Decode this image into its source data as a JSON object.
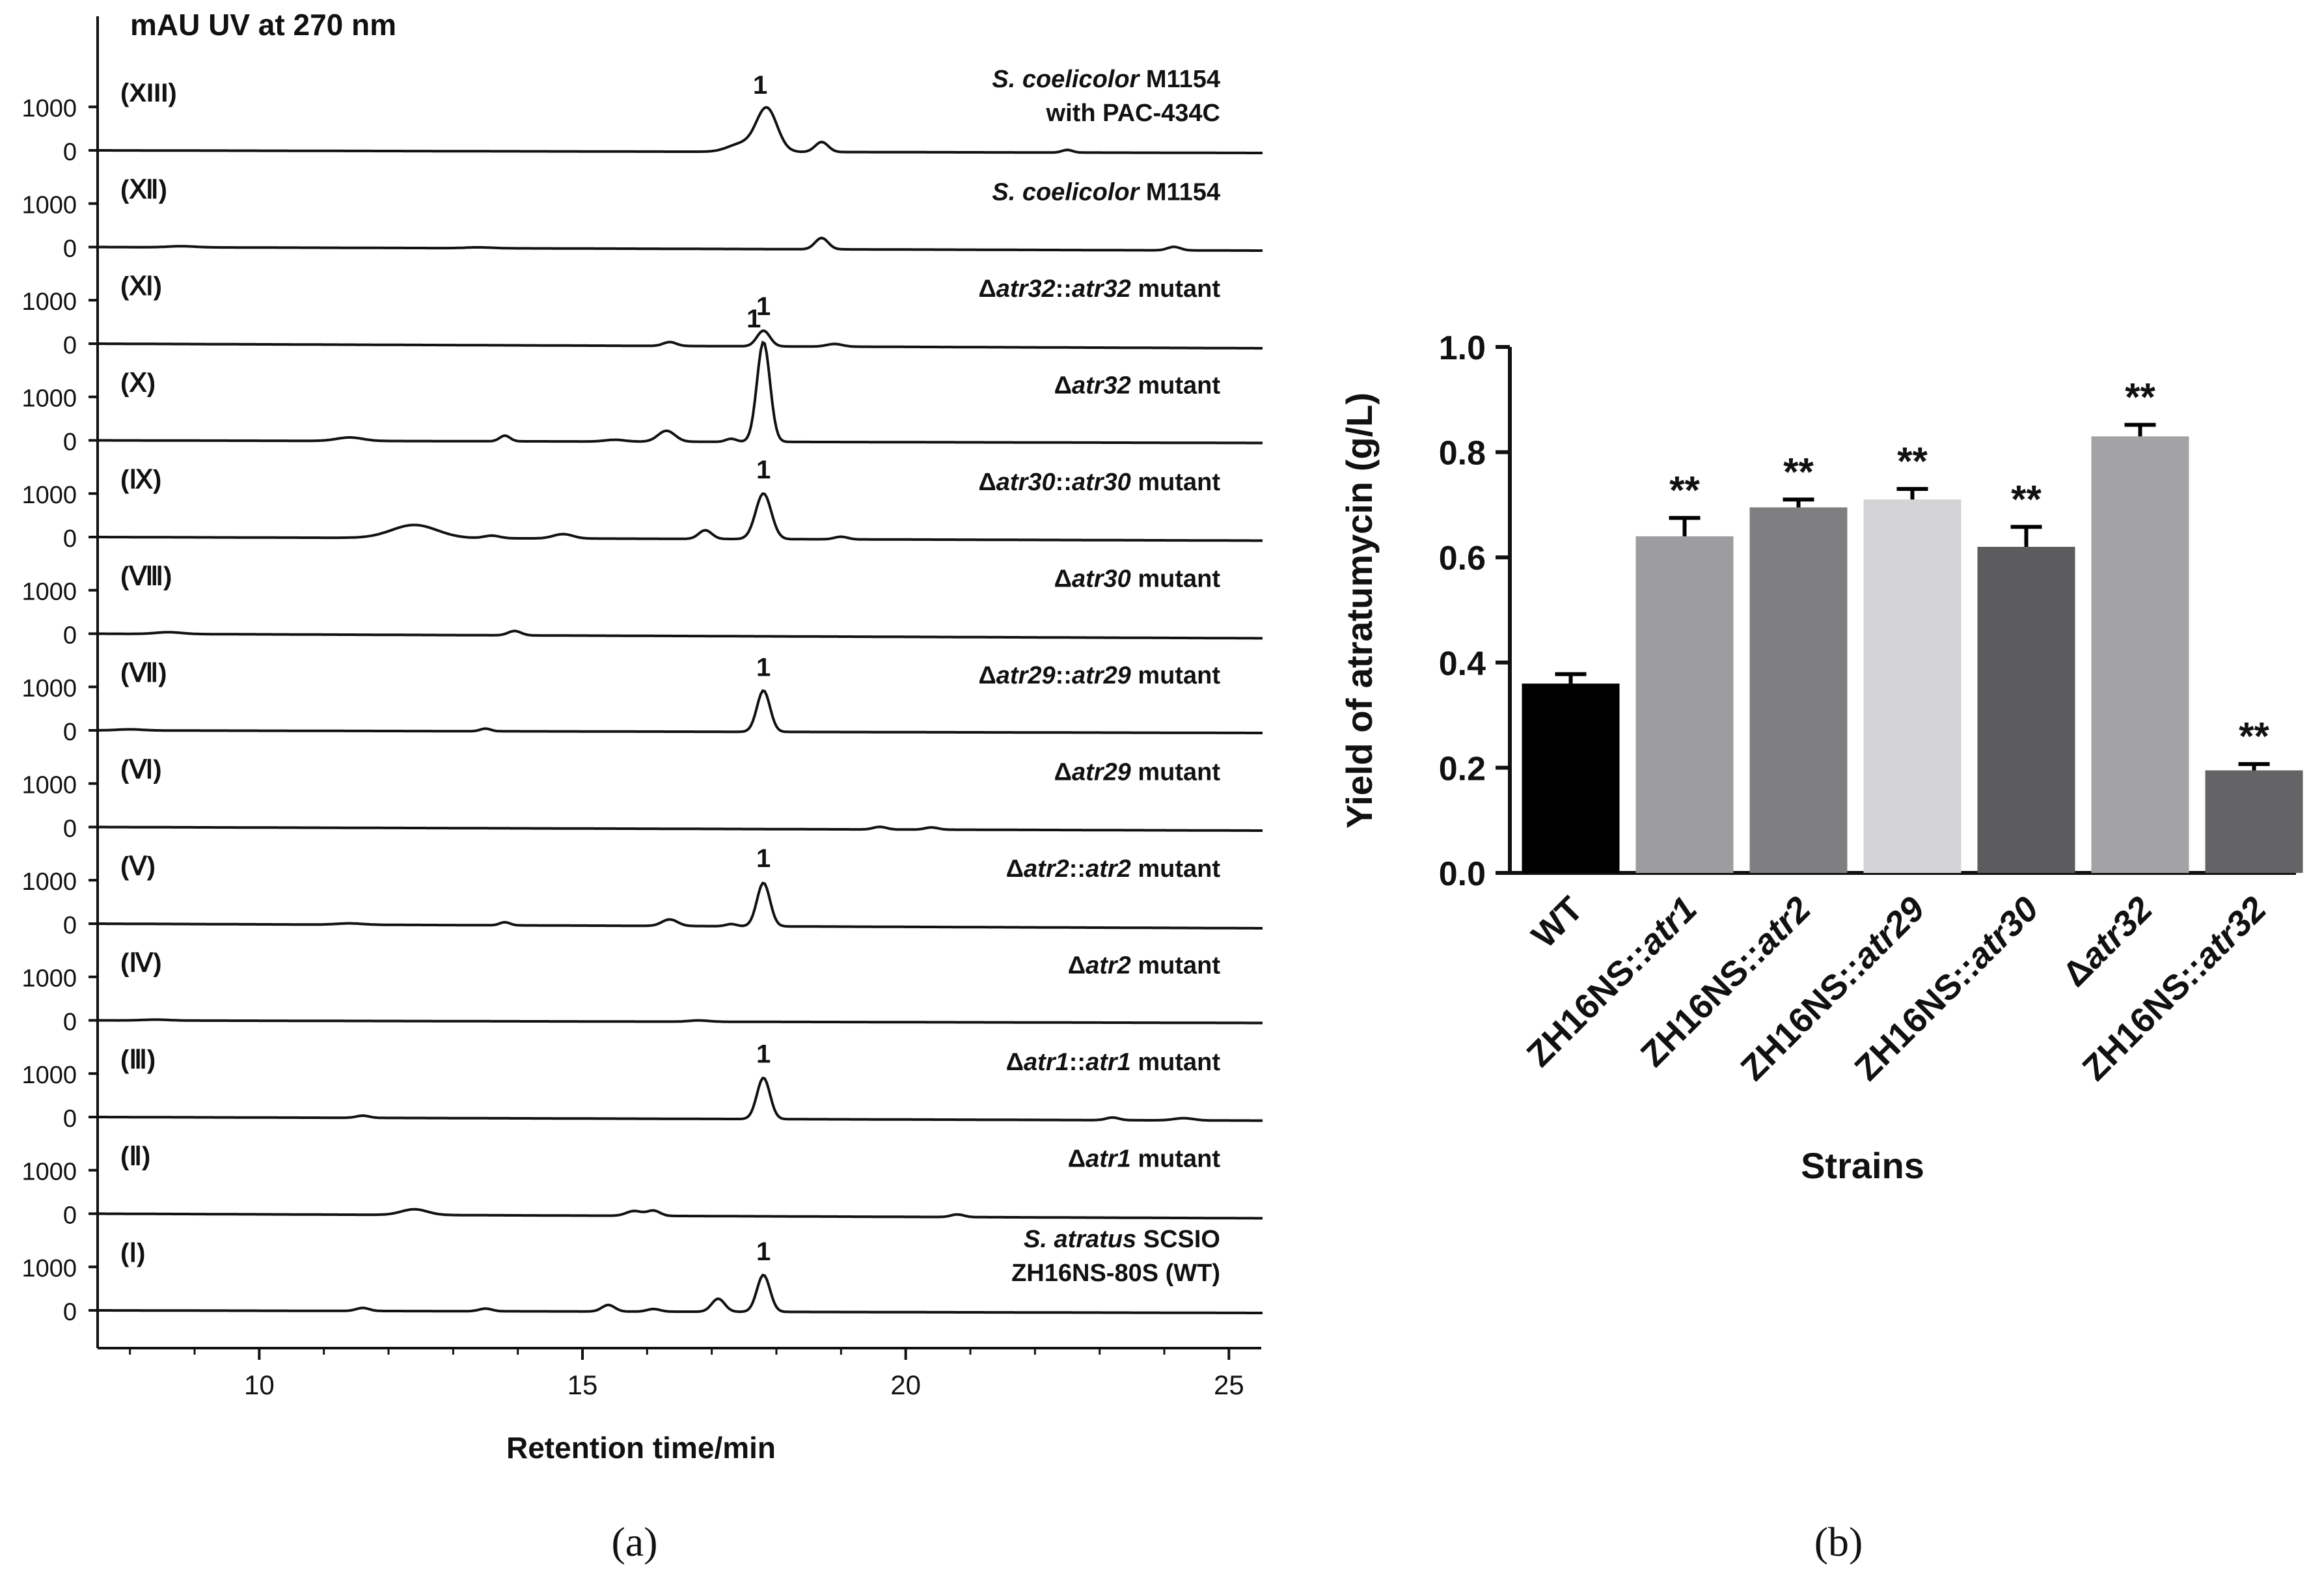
{
  "chart_data": [
    {
      "type": "line",
      "panel_label": "(a)",
      "title": "mAU UV at 270 nm",
      "xlabel": "Retention time/min",
      "ylabel": "mAU UV at 270 nm",
      "xlim": [
        7.5,
        25.5
      ],
      "xticks": [
        "10",
        "15",
        "20",
        "25"
      ],
      "ytick_labels": [
        "1000",
        "0"
      ],
      "grid": false,
      "traces": [
        {
          "roman": "(XIII)",
          "sample": [
            {
              "t": "S. coelicolor",
              "i": true
            },
            {
              "t": " M1154",
              "i": false
            }
          ],
          "sample2": "with PAC-434C",
          "peak_label": "1",
          "peak_label_x": 17.75,
          "peaks": [
            [
              17.85,
              1000,
              0.16
            ],
            [
              17.45,
              180,
              0.2
            ],
            [
              18.7,
              230,
              0.1
            ],
            [
              22.5,
              60,
              0.08
            ]
          ]
        },
        {
          "roman": "(Ⅻ)",
          "sample": [
            {
              "t": "S. coelicolor",
              "i": true
            },
            {
              "t": " M1154",
              "i": false
            }
          ],
          "sample2": "",
          "peak_label": "",
          "peak_label_x": 0,
          "peaks": [
            [
              18.7,
              260,
              0.1
            ],
            [
              24.15,
              80,
              0.1
            ],
            [
              8.8,
              25,
              0.2
            ],
            [
              13.4,
              20,
              0.2
            ]
          ]
        },
        {
          "roman": "(Ⅺ)",
          "sample": [
            {
              "t": "Δ",
              "i": false
            },
            {
              "t": "atr32",
              "i": true
            },
            {
              "t": "::",
              "i": false
            },
            {
              "t": "atr32",
              "i": true
            },
            {
              "t": " mutant",
              "i": false
            }
          ],
          "sample2": "",
          "peak_label": "1",
          "peak_label_x": 17.8,
          "peaks": [
            [
              17.8,
              360,
              0.1
            ],
            [
              16.35,
              90,
              0.1
            ],
            [
              18.9,
              60,
              0.12
            ]
          ]
        },
        {
          "roman": "(Ⅹ)",
          "sample": [
            {
              "t": "Δ",
              "i": false
            },
            {
              "t": "atr32",
              "i": true
            },
            {
              "t": " mutant",
              "i": false
            }
          ],
          "sample2": "",
          "peak_label": "1",
          "peak_label_x": 17.65,
          "peaks": [
            [
              17.8,
              2300,
              0.1
            ],
            [
              16.3,
              250,
              0.13
            ],
            [
              13.8,
              130,
              0.08
            ],
            [
              11.4,
              80,
              0.2
            ],
            [
              17.3,
              70,
              0.08
            ],
            [
              15.5,
              40,
              0.15
            ]
          ]
        },
        {
          "roman": "(Ⅸ)",
          "sample": [
            {
              "t": "Δ",
              "i": false
            },
            {
              "t": "atr30",
              "i": true
            },
            {
              "t": "::",
              "i": false
            },
            {
              "t": "atr30",
              "i": true
            },
            {
              "t": " mutant",
              "i": false
            }
          ],
          "sample2": "",
          "peak_label": "1",
          "peak_label_x": 17.8,
          "peaks": [
            [
              17.8,
              1050,
              0.12
            ],
            [
              12.4,
              300,
              0.35
            ],
            [
              16.9,
              200,
              0.1
            ],
            [
              14.7,
              100,
              0.15
            ],
            [
              13.6,
              60,
              0.12
            ],
            [
              19.0,
              60,
              0.1
            ]
          ]
        },
        {
          "roman": "(Ⅷ)",
          "sample": [
            {
              "t": "Δ",
              "i": false
            },
            {
              "t": "atr30",
              "i": true
            },
            {
              "t": " mutant",
              "i": false
            }
          ],
          "sample2": "",
          "peak_label": "",
          "peak_label_x": 0,
          "peaks": [
            [
              13.95,
              100,
              0.1
            ],
            [
              8.6,
              40,
              0.2
            ]
          ]
        },
        {
          "roman": "(Ⅶ)",
          "sample": [
            {
              "t": "Δ",
              "i": false
            },
            {
              "t": "atr29",
              "i": true
            },
            {
              "t": "::",
              "i": false
            },
            {
              "t": "atr29",
              "i": true
            },
            {
              "t": " mutant",
              "i": false
            }
          ],
          "sample2": "",
          "peak_label": "1",
          "peak_label_x": 17.8,
          "peaks": [
            [
              17.8,
              950,
              0.1
            ],
            [
              13.5,
              60,
              0.08
            ],
            [
              8.0,
              25,
              0.2
            ]
          ]
        },
        {
          "roman": "(Ⅵ)",
          "sample": [
            {
              "t": "Δ",
              "i": false
            },
            {
              "t": "atr29",
              "i": true
            },
            {
              "t": " mutant",
              "i": false
            }
          ],
          "sample2": "",
          "peak_label": "",
          "peak_label_x": 0,
          "peaks": [
            [
              19.6,
              60,
              0.1
            ],
            [
              20.4,
              50,
              0.1
            ]
          ]
        },
        {
          "roman": "(Ⅴ)",
          "sample": [
            {
              "t": "Δ",
              "i": false
            },
            {
              "t": "atr2",
              "i": true
            },
            {
              "t": "::",
              "i": false
            },
            {
              "t": "atr2",
              "i": true
            },
            {
              "t": " mutant",
              "i": false
            }
          ],
          "sample2": "",
          "peak_label": "1",
          "peak_label_x": 17.8,
          "peaks": [
            [
              17.8,
              1000,
              0.1
            ],
            [
              16.35,
              150,
              0.12
            ],
            [
              13.8,
              70,
              0.08
            ],
            [
              17.3,
              50,
              0.08
            ],
            [
              11.4,
              30,
              0.2
            ]
          ]
        },
        {
          "roman": "(Ⅳ)",
          "sample": [
            {
              "t": "Δ",
              "i": false
            },
            {
              "t": "atr2",
              "i": true
            },
            {
              "t": " mutant",
              "i": false
            }
          ],
          "sample2": "",
          "peak_label": "",
          "peak_label_x": 0,
          "peaks": [
            [
              16.8,
              30,
              0.15
            ],
            [
              8.4,
              20,
              0.2
            ]
          ]
        },
        {
          "roman": "(Ⅲ)",
          "sample": [
            {
              "t": "Δ",
              "i": false
            },
            {
              "t": "atr1",
              "i": true
            },
            {
              "t": "::",
              "i": false
            },
            {
              "t": "atr1",
              "i": true
            },
            {
              "t": " mutant",
              "i": false
            }
          ],
          "sample2": "",
          "peak_label": "1",
          "peak_label_x": 17.8,
          "peaks": [
            [
              17.8,
              950,
              0.1
            ],
            [
              11.6,
              50,
              0.1
            ],
            [
              23.2,
              60,
              0.1
            ],
            [
              24.3,
              50,
              0.15
            ]
          ]
        },
        {
          "roman": "(Ⅱ)",
          "sample": [
            {
              "t": "Δ",
              "i": false
            },
            {
              "t": "atr1",
              "i": true
            },
            {
              "t": " mutant",
              "i": false
            }
          ],
          "sample2": "",
          "peak_label": "",
          "peak_label_x": 0,
          "peaks": [
            [
              12.4,
              130,
              0.2
            ],
            [
              15.8,
              110,
              0.12
            ],
            [
              16.1,
              120,
              0.1
            ],
            [
              20.8,
              60,
              0.1
            ]
          ]
        },
        {
          "roman": "(Ⅰ)",
          "sample": [
            {
              "t": "S. atratus",
              "i": true
            },
            {
              "t": " SCSIO",
              "i": false
            }
          ],
          "sample2": "ZH16NS-80S (WT)",
          "peak_label": "1",
          "peak_label_x": 17.8,
          "peaks": [
            [
              17.8,
              850,
              0.1
            ],
            [
              17.1,
              300,
              0.1
            ],
            [
              15.4,
              150,
              0.1
            ],
            [
              11.6,
              70,
              0.1
            ],
            [
              13.5,
              60,
              0.1
            ],
            [
              16.1,
              60,
              0.1
            ]
          ]
        }
      ]
    },
    {
      "type": "bar",
      "panel_label": "(b)",
      "title": "",
      "xlabel": "Strains",
      "ylabel": "Yield of atratumycin (g/L)",
      "ylim": [
        0,
        1.0
      ],
      "yticks": [
        "0.0",
        "0.2",
        "0.4",
        "0.6",
        "0.8",
        "1.0"
      ],
      "grid": false,
      "categories": [
        [
          {
            "t": "WT",
            "i": false
          }
        ],
        [
          {
            "t": "ZH16NS::",
            "i": false
          },
          {
            "t": "atr1",
            "i": true
          }
        ],
        [
          {
            "t": "ZH16NS::",
            "i": false
          },
          {
            "t": "atr2",
            "i": true
          }
        ],
        [
          {
            "t": "ZH16NS::",
            "i": false
          },
          {
            "t": "atr29",
            "i": true
          }
        ],
        [
          {
            "t": "ZH16NS::",
            "i": false
          },
          {
            "t": "atr30",
            "i": true
          }
        ],
        [
          {
            "t": "Δ",
            "i": false
          },
          {
            "t": "atr32",
            "i": true
          }
        ],
        [
          {
            "t": "ZH16NS::",
            "i": false
          },
          {
            "t": "atr32",
            "i": true
          }
        ]
      ],
      "values": [
        0.36,
        0.64,
        0.695,
        0.71,
        0.62,
        0.83,
        0.195
      ],
      "errors": [
        0.018,
        0.035,
        0.015,
        0.02,
        0.038,
        0.022,
        0.012
      ],
      "significance": [
        "",
        "**",
        "**",
        "**",
        "**",
        "**",
        "**"
      ],
      "colors": [
        "#000000",
        "#9d9d9f",
        "#7f7f81",
        "#d4d4d6",
        "#5c5c5e",
        "#a3a3a5",
        "#646466"
      ]
    }
  ]
}
